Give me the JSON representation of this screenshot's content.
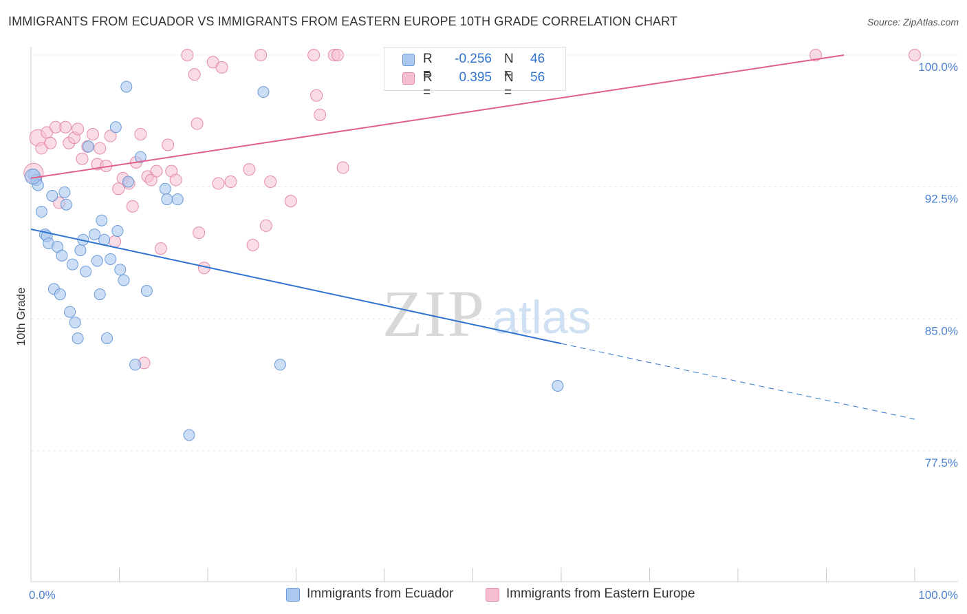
{
  "title": "IMMIGRANTS FROM ECUADOR VS IMMIGRANTS FROM EASTERN EUROPE 10TH GRADE CORRELATION CHART",
  "source": "Source: ZipAtlas.com",
  "watermark": {
    "zip": "ZIP",
    "atlas": "atlas"
  },
  "colors": {
    "blue_fill": "#aac8f0",
    "blue_stroke": "#6a9ad6",
    "blue_line": "#2f74d0",
    "pink_fill": "#f6bfd0",
    "pink_stroke": "#e48aa8",
    "pink_line": "#e0608a",
    "axis_text": "#4a7fcf",
    "grid": "#e6e6e6"
  },
  "legend": {
    "r_label": "R =",
    "n_label": "N =",
    "series": [
      {
        "r": "-0.256",
        "n": "46"
      },
      {
        "r": "0.395",
        "n": "56"
      }
    ]
  },
  "chart_data": {
    "type": "scatter",
    "title": "IMMIGRANTS FROM ECUADOR VS IMMIGRANTS FROM EASTERN EUROPE 10TH GRADE CORRELATION CHART",
    "xlabel": "",
    "ylabel": "10th Grade",
    "xlim": [
      0,
      100
    ],
    "ylim": [
      70.0,
      101.5
    ],
    "x_tick_labels": [
      "0.0%",
      "100.0%"
    ],
    "y_ticks": [
      100.0,
      92.5,
      85.0,
      77.5
    ],
    "y_tick_labels": [
      "100.0%",
      "92.5%",
      "85.0%",
      "77.5%"
    ],
    "series": [
      {
        "name": "Immigrants from Ecuador",
        "r": -0.256,
        "n": 46,
        "trend": {
          "x0": 0,
          "y0": 90.1,
          "x1": 60,
          "y1": 83.6,
          "dash_x1": 100,
          "dash_y1": 79.3
        },
        "points": [
          [
            0.3,
            93.2
          ],
          [
            0.6,
            92.9
          ],
          [
            0.8,
            92.6
          ],
          [
            1.2,
            91.1
          ],
          [
            1.6,
            89.8
          ],
          [
            1.8,
            89.7
          ],
          [
            2.0,
            89.3
          ],
          [
            2.4,
            92.0
          ],
          [
            2.6,
            86.7
          ],
          [
            3.0,
            89.1
          ],
          [
            3.3,
            86.4
          ],
          [
            3.5,
            88.6
          ],
          [
            3.8,
            92.2
          ],
          [
            4.0,
            91.5
          ],
          [
            4.4,
            85.4
          ],
          [
            4.7,
            88.1
          ],
          [
            5.0,
            84.8
          ],
          [
            5.3,
            83.9
          ],
          [
            5.6,
            88.9
          ],
          [
            5.9,
            89.5
          ],
          [
            6.2,
            87.7
          ],
          [
            6.5,
            94.8
          ],
          [
            7.2,
            89.8
          ],
          [
            7.5,
            88.3
          ],
          [
            7.8,
            86.4
          ],
          [
            8.0,
            90.6
          ],
          [
            8.3,
            89.5
          ],
          [
            8.6,
            83.9
          ],
          [
            9.0,
            88.4
          ],
          [
            9.6,
            95.9
          ],
          [
            9.8,
            90.0
          ],
          [
            10.1,
            87.8
          ],
          [
            10.5,
            87.2
          ],
          [
            10.8,
            98.2
          ],
          [
            11.0,
            92.8
          ],
          [
            11.8,
            82.4
          ],
          [
            12.4,
            94.2
          ],
          [
            13.1,
            86.6
          ],
          [
            15.2,
            92.4
          ],
          [
            15.4,
            91.8
          ],
          [
            16.6,
            91.8
          ],
          [
            17.9,
            78.4
          ],
          [
            26.3,
            97.9
          ],
          [
            28.2,
            82.4
          ],
          [
            59.6,
            81.2
          ],
          [
            0.2,
            93.1
          ]
        ]
      },
      {
        "name": "Immigrants from Eastern Europe",
        "r": 0.395,
        "n": 56,
        "trend": {
          "x0": 0,
          "y0": 93.0,
          "x1": 92,
          "y1": 100.0
        },
        "points": [
          [
            0.3,
            93.3
          ],
          [
            0.8,
            95.3
          ],
          [
            1.2,
            94.7
          ],
          [
            1.8,
            95.6
          ],
          [
            2.2,
            95.0
          ],
          [
            2.8,
            95.9
          ],
          [
            3.2,
            91.6
          ],
          [
            3.9,
            95.9
          ],
          [
            4.3,
            95.0
          ],
          [
            4.9,
            95.3
          ],
          [
            5.3,
            95.8
          ],
          [
            5.8,
            94.1
          ],
          [
            6.4,
            94.8
          ],
          [
            7.0,
            95.5
          ],
          [
            7.5,
            93.8
          ],
          [
            7.8,
            94.7
          ],
          [
            8.5,
            93.7
          ],
          [
            9.0,
            95.4
          ],
          [
            9.5,
            89.4
          ],
          [
            9.9,
            92.4
          ],
          [
            10.4,
            93.0
          ],
          [
            11.1,
            92.7
          ],
          [
            11.5,
            91.4
          ],
          [
            11.9,
            93.9
          ],
          [
            12.4,
            95.5
          ],
          [
            12.8,
            82.5
          ],
          [
            13.2,
            93.1
          ],
          [
            13.6,
            92.9
          ],
          [
            14.2,
            93.4
          ],
          [
            14.7,
            89.0
          ],
          [
            15.5,
            94.9
          ],
          [
            15.9,
            93.4
          ],
          [
            16.4,
            92.9
          ],
          [
            17.7,
            100.0
          ],
          [
            18.5,
            98.9
          ],
          [
            18.8,
            96.1
          ],
          [
            19.0,
            89.9
          ],
          [
            19.6,
            87.9
          ],
          [
            20.6,
            99.6
          ],
          [
            21.2,
            92.7
          ],
          [
            21.6,
            99.3
          ],
          [
            22.6,
            92.8
          ],
          [
            24.7,
            93.5
          ],
          [
            25.1,
            89.2
          ],
          [
            26.0,
            100.0
          ],
          [
            26.6,
            90.3
          ],
          [
            27.1,
            92.8
          ],
          [
            29.4,
            91.7
          ],
          [
            32.0,
            100.0
          ],
          [
            32.3,
            97.7
          ],
          [
            32.7,
            96.6
          ],
          [
            34.3,
            100.0
          ],
          [
            34.7,
            100.0
          ],
          [
            35.3,
            93.6
          ],
          [
            88.8,
            100.0
          ],
          [
            100.0,
            100.0
          ]
        ]
      }
    ],
    "legend_position": "top-center"
  }
}
